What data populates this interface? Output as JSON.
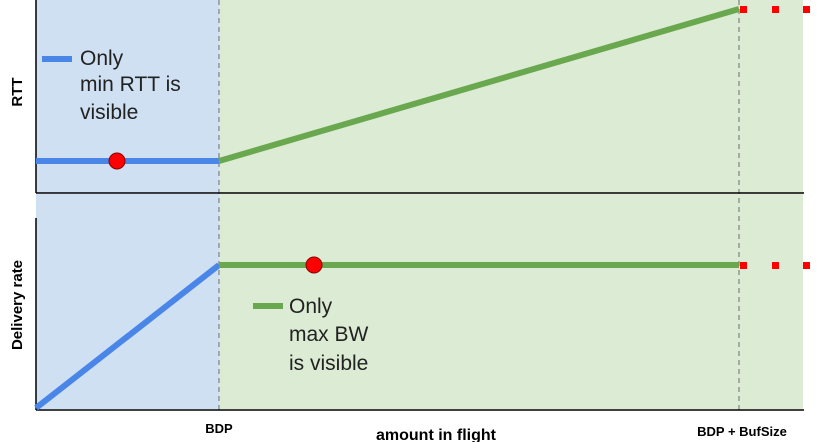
{
  "top_panel": {
    "ylabel": "RTT",
    "legend_lines": [
      "Only",
      "min RTT is",
      "visible"
    ]
  },
  "bottom_panel": {
    "ylabel": "Delivery rate",
    "legend_lines": [
      "Only",
      "max BW",
      "is visible"
    ]
  },
  "xaxis": {
    "label": "amount in flight",
    "tick_bdp": "BDP",
    "tick_bdp_bufsize": "BDP + BufSize"
  },
  "colors": {
    "blue_region": "#cfe0f3",
    "green_region": "#dcebd3",
    "blue_line": "#4a86e8",
    "green_line": "#6aa84f",
    "dot": "#ff0000",
    "axis": "#000000",
    "dashed": "#888888"
  }
}
